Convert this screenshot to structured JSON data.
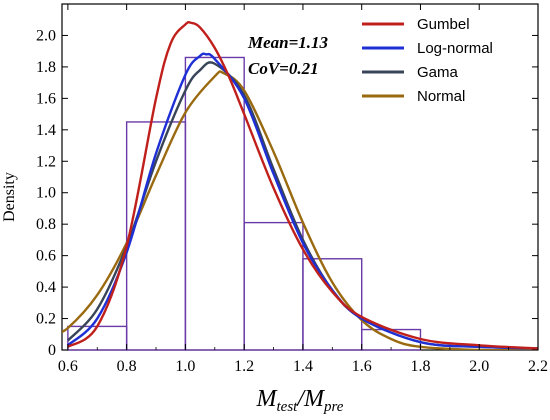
{
  "chart_data": {
    "type": "histogram-with-density-curves",
    "title": "",
    "xlabel": "M_test/M_pre",
    "xlabel_main": "M",
    "xlabel_sub1": "test",
    "xlabel_sep": "/M",
    "xlabel_sub2": "pre",
    "ylabel": "Density",
    "xlim": [
      0.58,
      2.2
    ],
    "ylim": [
      0,
      2.2
    ],
    "xticks": [
      "0.6",
      "0.8",
      "1.0",
      "1.2",
      "1.4",
      "1.6",
      "1.8",
      "2.0",
      "2.2"
    ],
    "yticks": [
      "0",
      "0.2",
      "0.4",
      "0.6",
      "0.8",
      "1.0",
      "1.2",
      "1.4",
      "1.6",
      "1.8",
      "2.0"
    ],
    "annotations": [
      "Mean=1.13",
      "CoV=0.21"
    ],
    "legend_position": "top-right",
    "histogram": {
      "color": "#6a3aa8",
      "bins": [
        {
          "x0": 0.6,
          "x1": 0.8,
          "density": 0.15
        },
        {
          "x0": 0.8,
          "x1": 1.0,
          "density": 1.45
        },
        {
          "x0": 1.0,
          "x1": 1.2,
          "density": 1.86
        },
        {
          "x0": 1.2,
          "x1": 1.4,
          "density": 0.81
        },
        {
          "x0": 1.4,
          "x1": 1.6,
          "density": 0.58
        },
        {
          "x0": 1.6,
          "x1": 1.8,
          "density": 0.13
        }
      ]
    },
    "series": [
      {
        "name": "Gumbel",
        "color": "#c0201c",
        "x": [
          0.6,
          0.7,
          0.8,
          0.9,
          0.95,
          1.0,
          1.02,
          1.05,
          1.1,
          1.15,
          1.2,
          1.3,
          1.4,
          1.5,
          1.6,
          1.8,
          2.0,
          2.2
        ],
        "y": [
          0.02,
          0.15,
          0.66,
          1.6,
          1.95,
          2.07,
          2.08,
          2.05,
          1.92,
          1.73,
          1.5,
          1.03,
          0.64,
          0.37,
          0.21,
          0.07,
          0.03,
          0.01
        ]
      },
      {
        "name": "Log-normal",
        "color": "#1f2fd6",
        "x": [
          0.6,
          0.7,
          0.8,
          0.9,
          1.0,
          1.05,
          1.07,
          1.1,
          1.2,
          1.3,
          1.4,
          1.5,
          1.6,
          1.8,
          2.0,
          2.2
        ],
        "y": [
          0.03,
          0.2,
          0.62,
          1.25,
          1.75,
          1.87,
          1.88,
          1.85,
          1.6,
          1.12,
          0.68,
          0.38,
          0.2,
          0.05,
          0.02,
          0.01
        ]
      },
      {
        "name": "Gama",
        "color": "#384458",
        "x": [
          0.6,
          0.7,
          0.8,
          0.9,
          1.0,
          1.05,
          1.1,
          1.2,
          1.3,
          1.4,
          1.5,
          1.6,
          1.8,
          2.0,
          2.2
        ],
        "y": [
          0.06,
          0.26,
          0.66,
          1.2,
          1.65,
          1.78,
          1.82,
          1.62,
          1.15,
          0.7,
          0.38,
          0.2,
          0.05,
          0.02,
          0.01
        ]
      },
      {
        "name": "Normal",
        "color": "#9a6a10",
        "x": [
          0.55,
          0.6,
          0.7,
          0.8,
          0.9,
          1.0,
          1.1,
          1.13,
          1.2,
          1.3,
          1.4,
          1.5,
          1.6,
          1.7,
          1.8,
          2.0,
          2.2
        ],
        "y": [
          0.1,
          0.14,
          0.35,
          0.68,
          1.11,
          1.51,
          1.74,
          1.76,
          1.65,
          1.26,
          0.81,
          0.43,
          0.19,
          0.07,
          0.02,
          0.0,
          0.0
        ]
      }
    ]
  }
}
